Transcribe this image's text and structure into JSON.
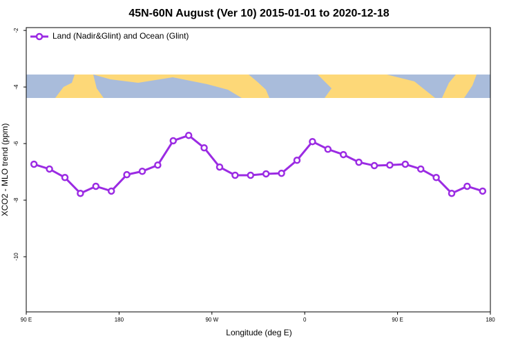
{
  "chart_data": {
    "type": "line",
    "title": "45N-60N August (Ver 10)   2015-01-01 to 2020-12-18",
    "x_label": "Longitude (deg E)",
    "y_label": "XCO2 - MLO trend (ppm)",
    "xlim": [
      90,
      540
    ],
    "xticks": [
      {
        "value": 90,
        "label": "90 E"
      },
      180,
      {
        "value": 270,
        "label": "90 W"
      },
      {
        "value": 360,
        "label": "0"
      },
      {
        "value": 450,
        "label": "90 E"
      },
      {
        "value": 540,
        "label": "180"
      }
    ],
    "ylim": [
      -11.95,
      -1.9
    ],
    "yticks": [
      -2,
      -4,
      -6,
      -8,
      -10
    ],
    "legend": "top-left",
    "x": [
      97.5,
      112.5,
      127.5,
      142.5,
      157.5,
      172.5,
      187.5,
      202.5,
      217.5,
      232.5,
      247.5,
      262.5,
      277.5,
      292.5,
      307.5,
      322.5,
      337.5,
      352.5,
      367.5,
      382.5,
      397.5,
      412.5,
      427.5,
      442.5,
      457.5,
      472.5,
      487.5,
      502.5,
      517.5,
      532.5
    ],
    "series": [
      {
        "name": "Land (Nadir&Glint) and Ocean (Glint)",
        "color": "#9b2be3",
        "values": [
          -6.73,
          -6.9,
          -7.2,
          -7.76,
          -7.51,
          -7.68,
          -7.1,
          -6.98,
          -6.76,
          -5.9,
          -5.71,
          -6.15,
          -6.83,
          -7.12,
          -7.12,
          -7.07,
          -7.05,
          -6.59,
          -5.93,
          -6.2,
          -6.39,
          -6.66,
          -6.78,
          -6.76,
          -6.73,
          -6.9,
          -7.2,
          -7.76,
          -7.51,
          -7.68
        ]
      }
    ]
  }
}
